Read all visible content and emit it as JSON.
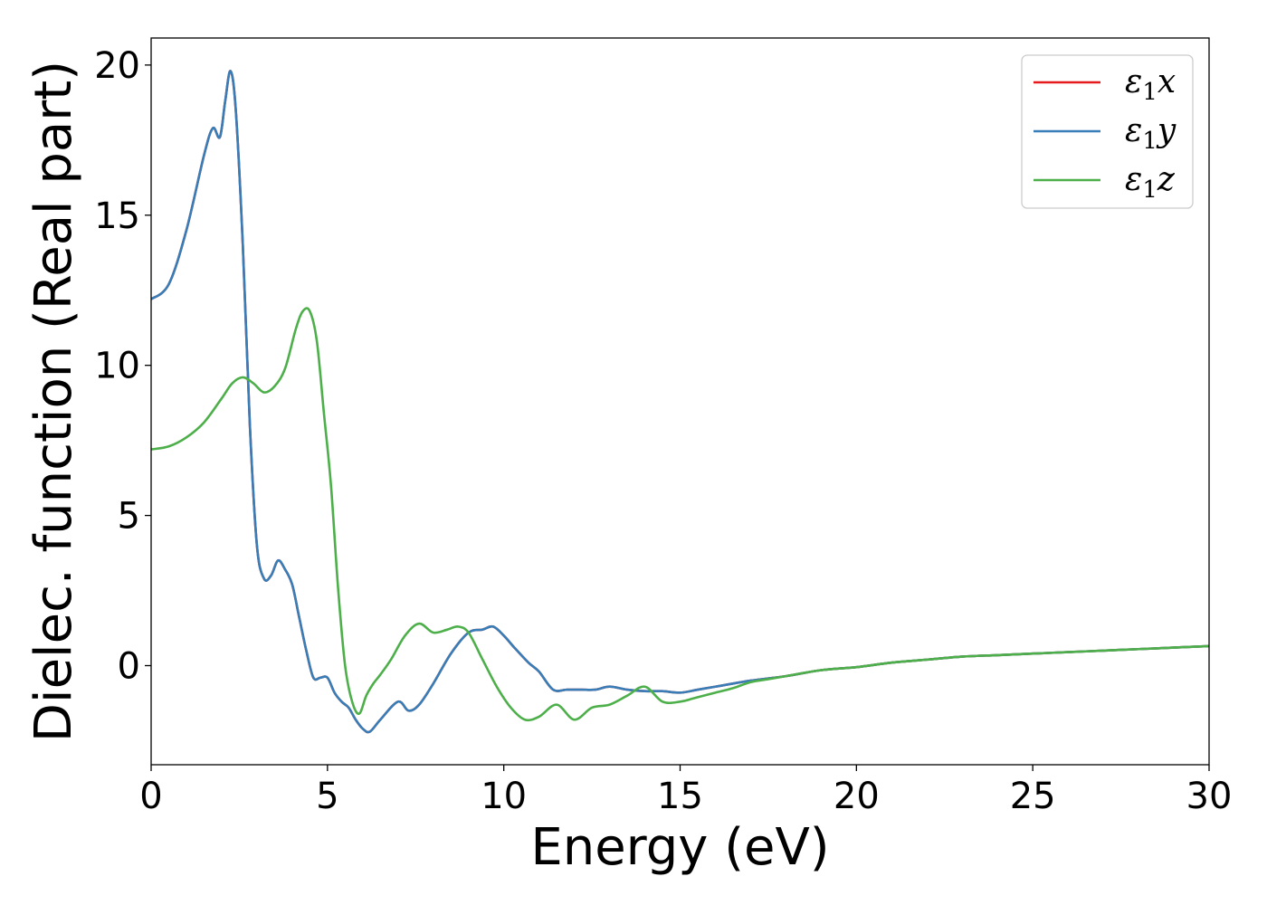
{
  "chart_data": {
    "type": "line",
    "xlabel": "Energy (eV)",
    "ylabel": "Dielec. function (Real part)",
    "xlim": [
      0,
      30
    ],
    "ylim": [
      -3.3,
      20.9
    ],
    "xticks": [
      0,
      5,
      10,
      15,
      20,
      25,
      30
    ],
    "yticks": [
      0,
      5,
      10,
      15,
      20
    ],
    "grid": false,
    "legend_position": "top-right",
    "series": [
      {
        "name": "ε1x",
        "legend": {
          "symbol": "ε",
          "sub": "1",
          "axis": "x"
        },
        "color": "#e41a1c",
        "x": [
          0,
          0.5,
          1,
          1.5,
          1.75,
          1.95,
          2.1,
          2.25,
          2.4,
          2.6,
          2.8,
          3.0,
          3.2,
          3.4,
          3.6,
          3.8,
          4.0,
          4.2,
          4.4,
          4.6,
          4.8,
          5.0,
          5.2,
          5.4,
          5.6,
          5.8,
          6.0,
          6.2,
          6.5,
          7.0,
          7.3,
          7.6,
          8.0,
          8.5,
          9.0,
          9.4,
          9.7,
          10.0,
          10.3,
          10.7,
          11.0,
          11.4,
          11.8,
          12.2,
          12.6,
          13.0,
          13.5,
          14.0,
          14.5,
          15.0,
          15.5,
          16.0,
          17.0,
          18.0,
          19.0,
          20.0,
          21.0,
          22.0,
          23.0,
          24.0,
          25.0,
          26.0,
          27.0,
          28.0,
          29.0,
          30.0
        ],
        "y": [
          12.2,
          12.7,
          14.5,
          17.0,
          17.9,
          17.6,
          18.8,
          19.8,
          18.5,
          14.0,
          8.0,
          4.0,
          2.9,
          3.0,
          3.5,
          3.2,
          2.7,
          1.6,
          0.5,
          -0.4,
          -0.4,
          -0.4,
          -0.9,
          -1.2,
          -1.4,
          -1.8,
          -2.1,
          -2.2,
          -1.8,
          -1.2,
          -1.5,
          -1.3,
          -0.6,
          0.4,
          1.1,
          1.2,
          1.3,
          1.0,
          0.6,
          0.1,
          -0.2,
          -0.8,
          -0.8,
          -0.8,
          -0.8,
          -0.7,
          -0.8,
          -0.85,
          -0.85,
          -0.9,
          -0.8,
          -0.7,
          -0.5,
          -0.35,
          -0.15,
          -0.05,
          0.1,
          0.2,
          0.3,
          0.35,
          0.4,
          0.45,
          0.5,
          0.55,
          0.6,
          0.65
        ]
      },
      {
        "name": "ε1y",
        "legend": {
          "symbol": "ε",
          "sub": "1",
          "axis": "y"
        },
        "color": "#377eb8",
        "x": [
          0,
          0.5,
          1,
          1.5,
          1.75,
          1.95,
          2.1,
          2.25,
          2.4,
          2.6,
          2.8,
          3.0,
          3.2,
          3.4,
          3.6,
          3.8,
          4.0,
          4.2,
          4.4,
          4.6,
          4.8,
          5.0,
          5.2,
          5.4,
          5.6,
          5.8,
          6.0,
          6.2,
          6.5,
          7.0,
          7.3,
          7.6,
          8.0,
          8.5,
          9.0,
          9.4,
          9.7,
          10.0,
          10.3,
          10.7,
          11.0,
          11.4,
          11.8,
          12.2,
          12.6,
          13.0,
          13.5,
          14.0,
          14.5,
          15.0,
          15.5,
          16.0,
          17.0,
          18.0,
          19.0,
          20.0,
          21.0,
          22.0,
          23.0,
          24.0,
          25.0,
          26.0,
          27.0,
          28.0,
          29.0,
          30.0
        ],
        "y": [
          12.2,
          12.7,
          14.5,
          17.0,
          17.9,
          17.6,
          18.8,
          19.8,
          18.5,
          14.0,
          8.0,
          4.0,
          2.9,
          3.0,
          3.5,
          3.2,
          2.7,
          1.6,
          0.5,
          -0.4,
          -0.4,
          -0.4,
          -0.9,
          -1.2,
          -1.4,
          -1.8,
          -2.1,
          -2.2,
          -1.8,
          -1.2,
          -1.5,
          -1.3,
          -0.6,
          0.4,
          1.1,
          1.2,
          1.3,
          1.0,
          0.6,
          0.1,
          -0.2,
          -0.8,
          -0.8,
          -0.8,
          -0.8,
          -0.7,
          -0.8,
          -0.85,
          -0.85,
          -0.9,
          -0.8,
          -0.7,
          -0.5,
          -0.35,
          -0.15,
          -0.05,
          0.1,
          0.2,
          0.3,
          0.35,
          0.4,
          0.45,
          0.5,
          0.55,
          0.6,
          0.65
        ]
      },
      {
        "name": "ε1z",
        "legend": {
          "symbol": "ε",
          "sub": "1",
          "axis": "z"
        },
        "color": "#4daf4a",
        "x": [
          0,
          0.5,
          1,
          1.5,
          2.0,
          2.3,
          2.6,
          2.9,
          3.2,
          3.5,
          3.8,
          4.1,
          4.3,
          4.5,
          4.7,
          4.9,
          5.1,
          5.3,
          5.5,
          5.7,
          5.9,
          6.1,
          6.3,
          6.5,
          6.8,
          7.2,
          7.6,
          8.0,
          8.4,
          8.7,
          9.0,
          9.4,
          9.8,
          10.2,
          10.6,
          11.0,
          11.5,
          12.0,
          12.5,
          13.0,
          13.5,
          14.0,
          14.5,
          15.0,
          15.5,
          16.0,
          16.5,
          17.0,
          17.5,
          18.0,
          19.0,
          20.0,
          21.0,
          22.0,
          23.0,
          24.0,
          25.0,
          26.0,
          27.0,
          28.0,
          29.0,
          30.0
        ],
        "y": [
          7.2,
          7.3,
          7.6,
          8.1,
          8.9,
          9.4,
          9.6,
          9.4,
          9.1,
          9.3,
          9.9,
          11.2,
          11.8,
          11.8,
          10.8,
          8.4,
          6.0,
          2.6,
          0.0,
          -1.2,
          -1.6,
          -1.0,
          -0.6,
          -0.3,
          0.2,
          1.0,
          1.4,
          1.1,
          1.2,
          1.3,
          1.1,
          0.2,
          -0.7,
          -1.4,
          -1.8,
          -1.7,
          -1.3,
          -1.8,
          -1.4,
          -1.3,
          -1.0,
          -0.7,
          -1.2,
          -1.2,
          -1.05,
          -0.9,
          -0.75,
          -0.55,
          -0.45,
          -0.35,
          -0.15,
          -0.05,
          0.1,
          0.2,
          0.3,
          0.35,
          0.4,
          0.45,
          0.5,
          0.55,
          0.6,
          0.65
        ]
      }
    ]
  }
}
